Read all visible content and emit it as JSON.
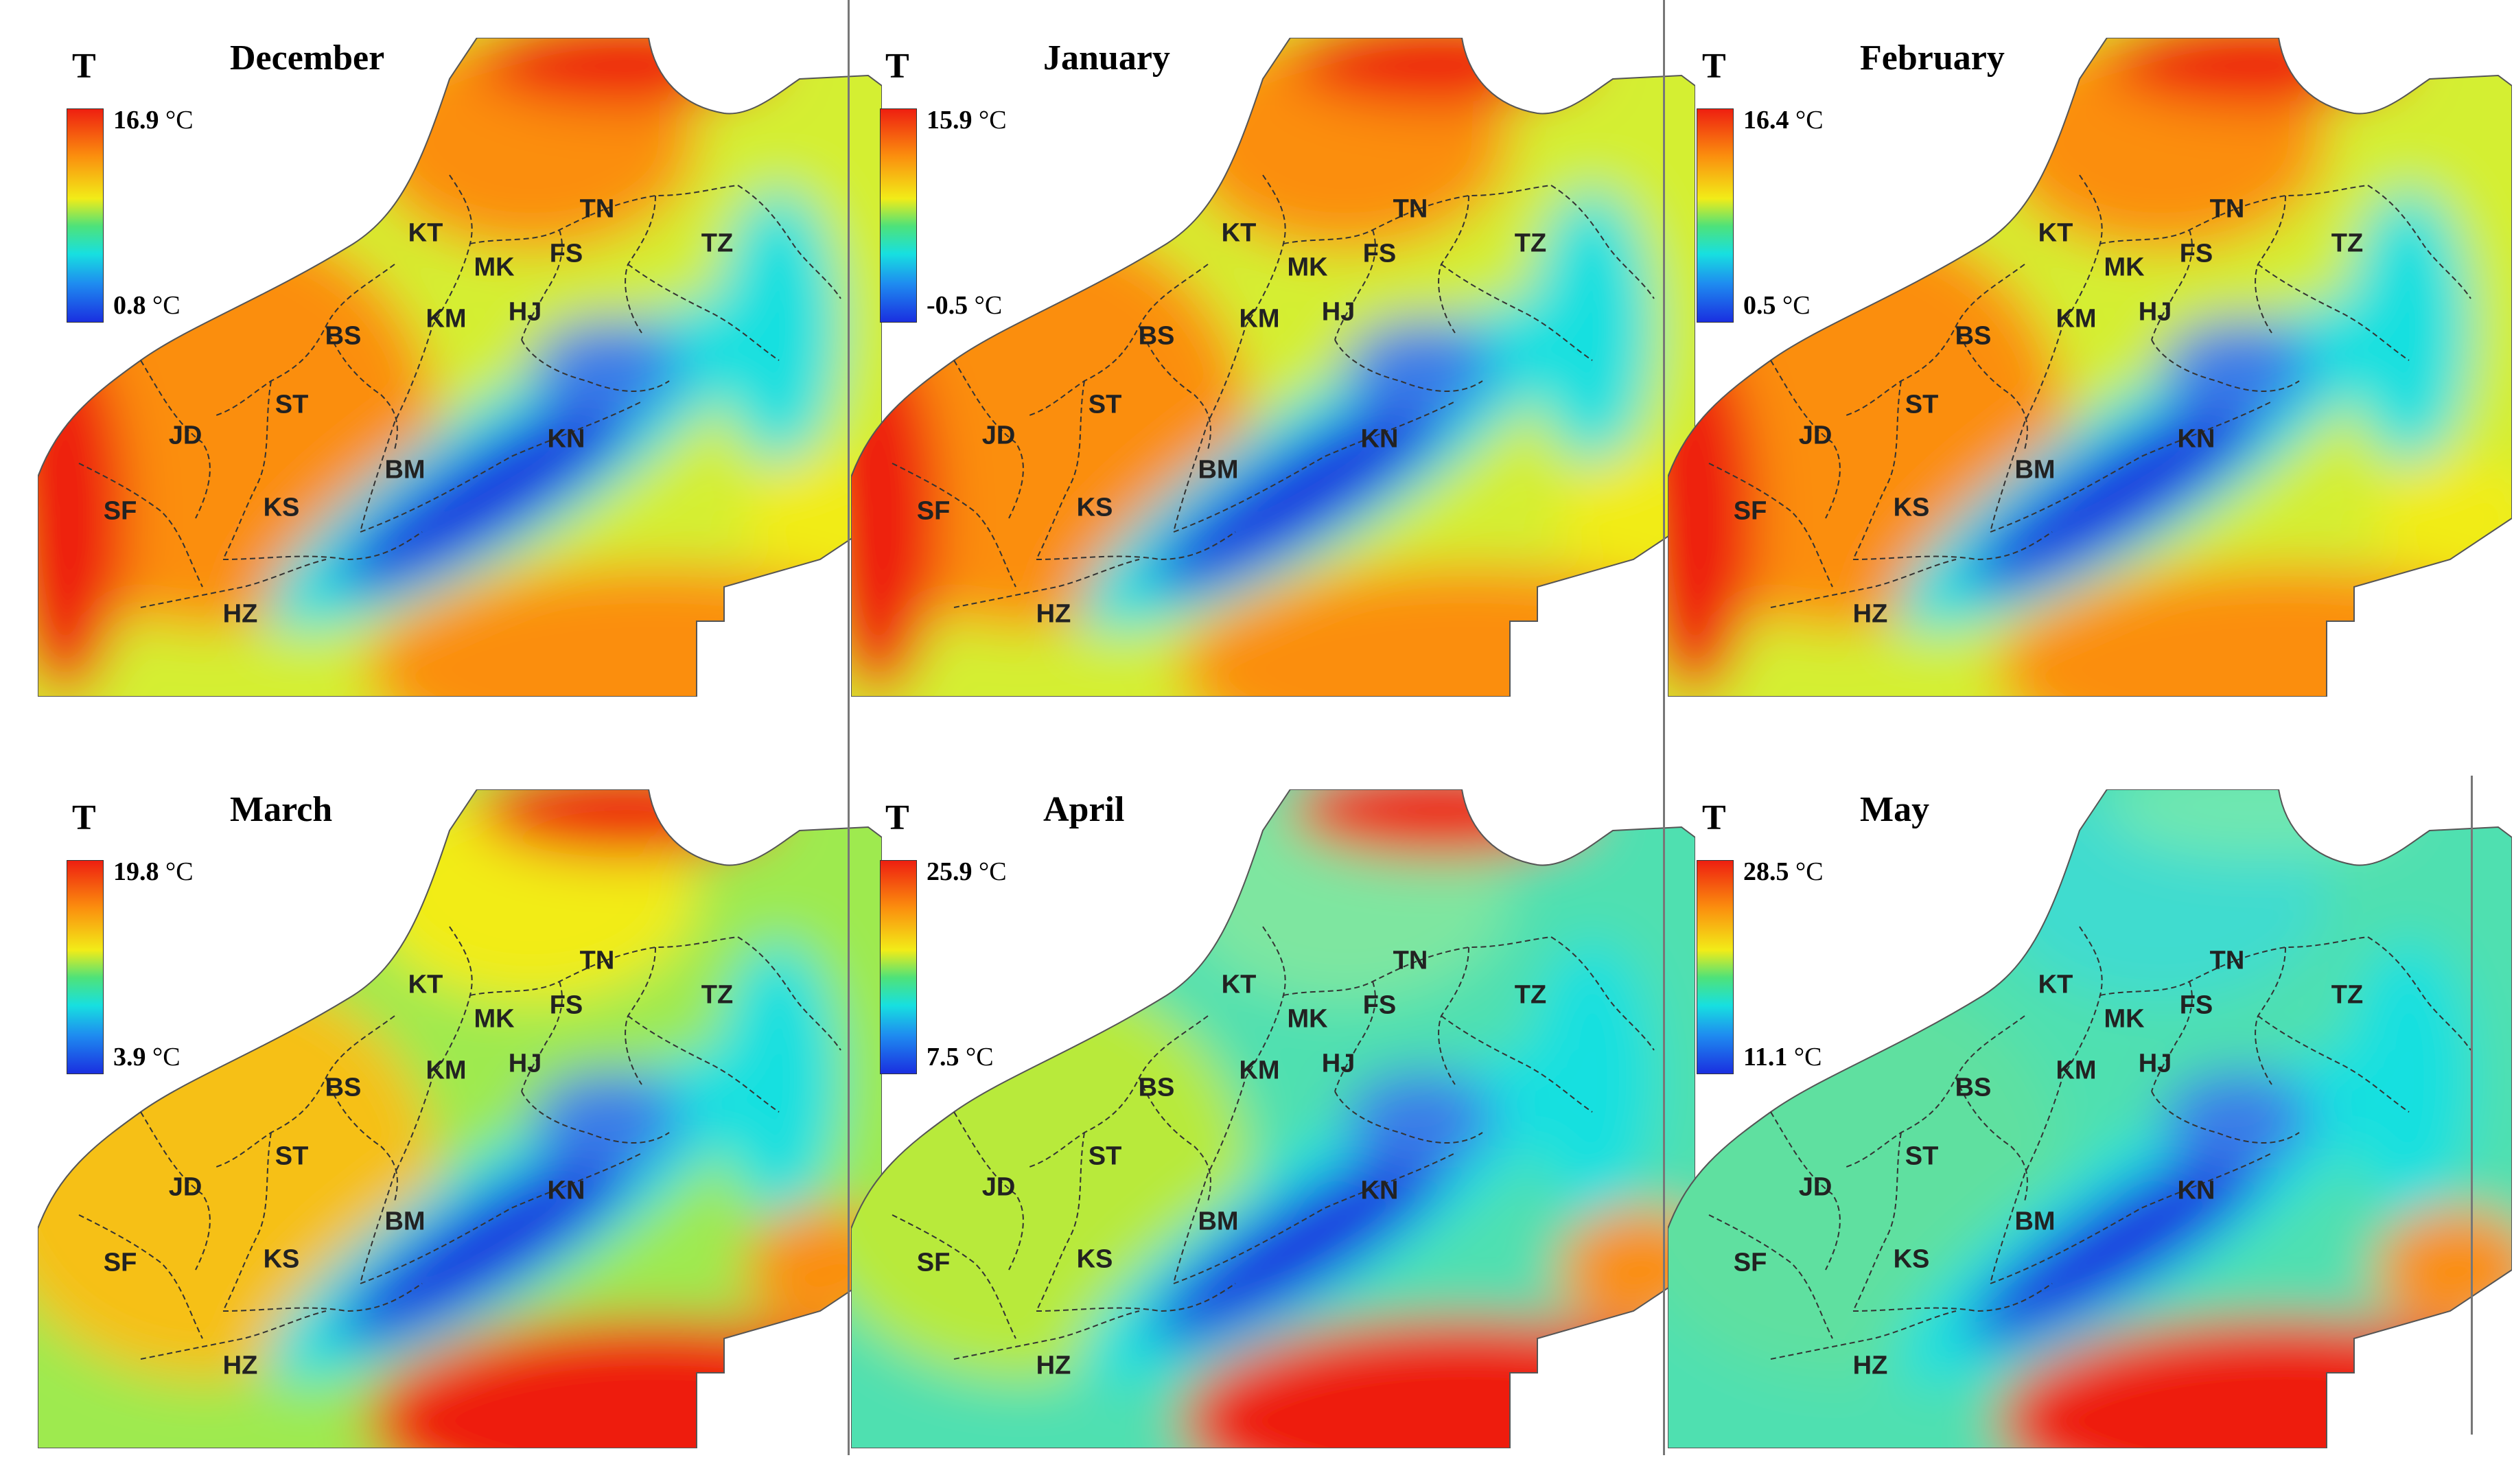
{
  "legend_symbol": "T",
  "colors": {
    "cold": "#1a2fe0",
    "cyan": "#17e0e0",
    "green": "#4ee27a",
    "yellow": "#f2ec18",
    "orange": "#fb8e0e",
    "red": "#ee1f10"
  },
  "panels": [
    {
      "month": "December",
      "max": "16.9",
      "min": "0.8",
      "unit": "°C",
      "warm_level": 0.9
    },
    {
      "month": "January",
      "max": "15.9",
      "min": "-0.5",
      "unit": "°C",
      "warm_level": 0.85
    },
    {
      "month": "February",
      "max": "16.4",
      "min": "0.5",
      "unit": "°C",
      "warm_level": 0.85
    },
    {
      "month": "March",
      "max": "19.8",
      "min": "3.9",
      "unit": "°C",
      "warm_level": 0.62
    },
    {
      "month": "April",
      "max": "25.9",
      "min": "7.5",
      "unit": "°C",
      "warm_level": 0.42
    },
    {
      "month": "May",
      "max": "28.5",
      "min": "11.1",
      "unit": "°C",
      "warm_level": 0.35
    }
  ],
  "regions": [
    "TN",
    "KT",
    "MK",
    "FS",
    "TZ",
    "KM",
    "HJ",
    "BS",
    "ST",
    "JD",
    "KN",
    "BM",
    "SF",
    "KS",
    "HZ"
  ]
}
